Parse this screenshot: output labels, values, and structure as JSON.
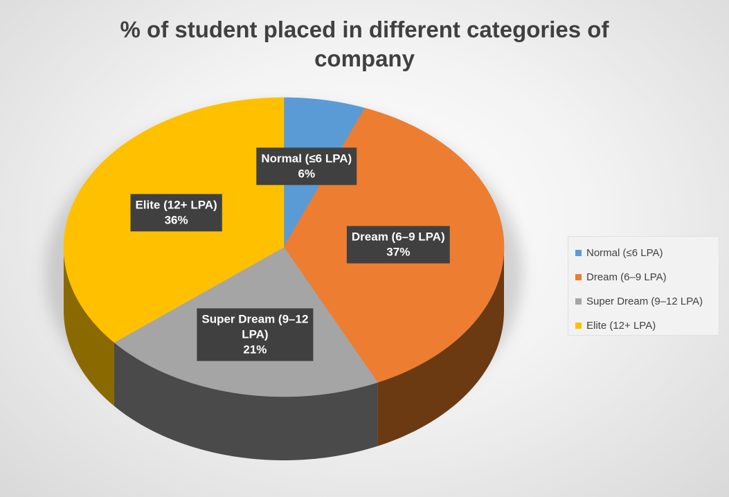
{
  "chart_data": {
    "type": "pie",
    "title": "% of student placed in different categories of company",
    "categories": [
      "Normal (≤6 LPA)",
      "Dream (6–9 LPA)",
      "Super Dream (9–12 LPA)",
      "Elite (12+ LPA)"
    ],
    "values": [
      6,
      37,
      21,
      36
    ],
    "value_labels": [
      "6%",
      "37%",
      "21%",
      "36%"
    ],
    "data_labels": [
      [
        "Normal (≤6 LPA)",
        "6%"
      ],
      [
        "Dream (6–9 LPA)",
        "37%"
      ],
      [
        "Super Dream (9–12",
        "LPA)",
        "21%"
      ],
      [
        "Elite (12+ LPA)",
        "36%"
      ]
    ],
    "colors": [
      "#5B9BD5",
      "#ED7D31",
      "#A5A5A5",
      "#FFC000"
    ],
    "side_colors": [
      "#2E5E8A",
      "#6B3A12",
      "#4A4A4A",
      "#8A6A00"
    ],
    "style": "3d",
    "legend": "right"
  }
}
